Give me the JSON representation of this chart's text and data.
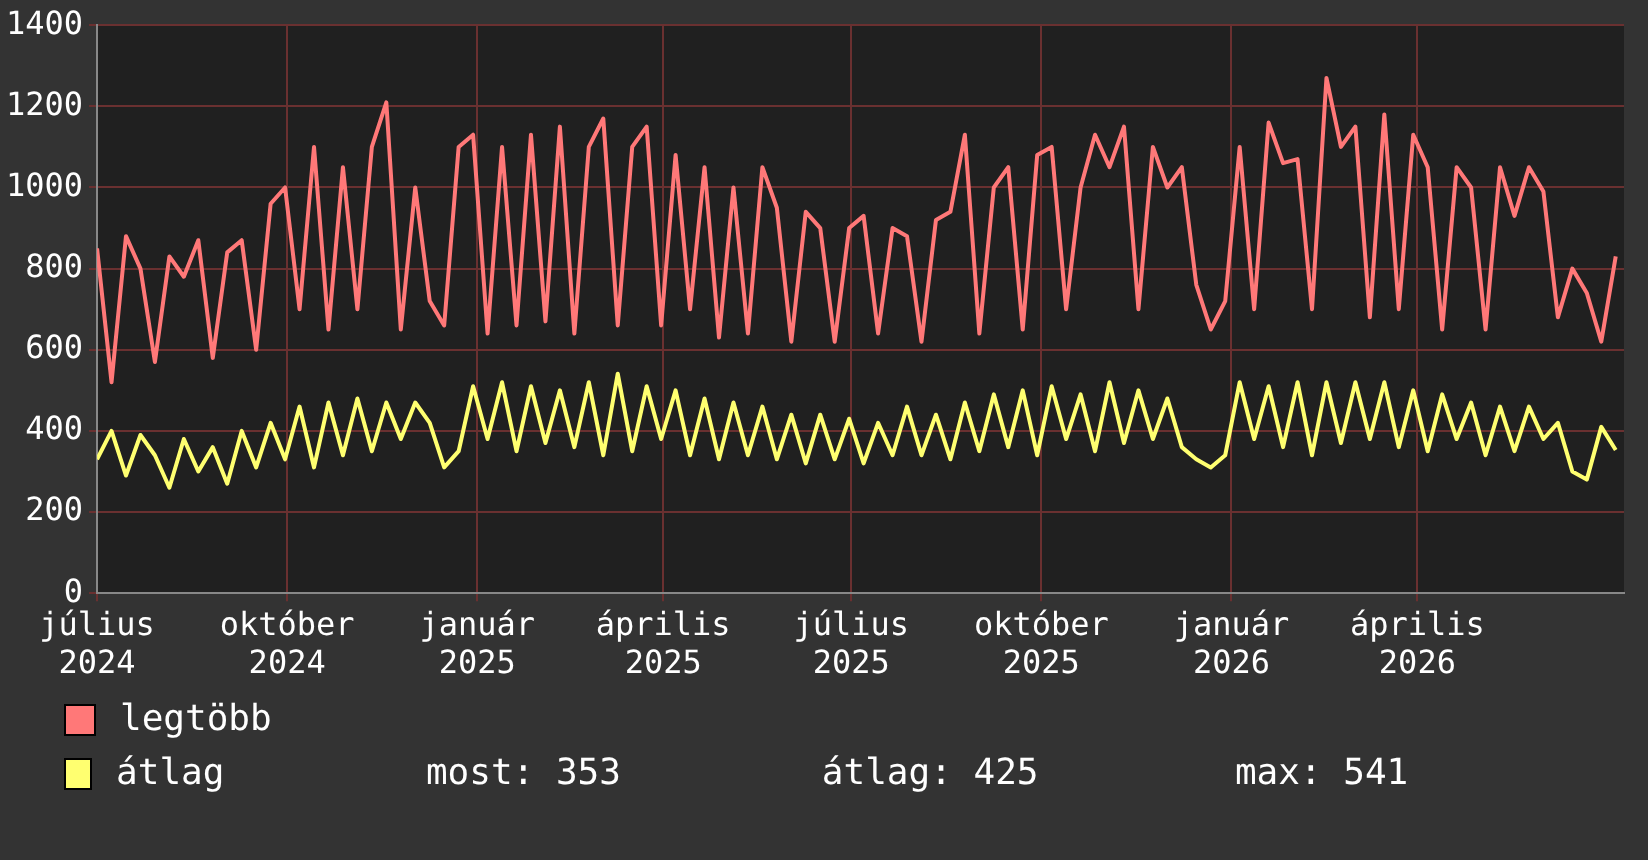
{
  "chart_data": {
    "type": "line",
    "x": [
      "2024-07-01",
      "2024-07-08",
      "2024-07-15",
      "2024-07-22",
      "2024-07-29",
      "2024-08-05",
      "2024-08-12",
      "2024-08-19",
      "2024-08-26",
      "2024-09-02",
      "2024-09-09",
      "2024-09-16",
      "2024-09-23",
      "2024-09-30",
      "2024-10-07",
      "2024-10-14",
      "2024-10-21",
      "2024-10-28",
      "2024-11-04",
      "2024-11-11",
      "2024-11-18",
      "2024-11-25",
      "2024-12-02",
      "2024-12-09",
      "2024-12-16",
      "2024-12-23",
      "2024-12-30",
      "2025-01-06",
      "2025-01-13",
      "2025-01-20",
      "2025-01-27",
      "2025-02-03",
      "2025-02-10",
      "2025-02-17",
      "2025-02-24",
      "2025-03-03",
      "2025-03-10",
      "2025-03-17",
      "2025-03-24",
      "2025-03-31",
      "2025-04-07",
      "2025-04-14",
      "2025-04-21",
      "2025-04-28",
      "2025-05-05",
      "2025-05-12",
      "2025-05-19",
      "2025-05-26",
      "2025-06-02",
      "2025-06-09",
      "2025-06-16",
      "2025-06-23",
      "2025-06-30",
      "2025-07-07",
      "2025-07-14",
      "2025-07-21",
      "2025-07-28",
      "2025-08-04",
      "2025-08-11",
      "2025-08-18",
      "2025-08-25",
      "2025-09-01",
      "2025-09-08",
      "2025-09-15",
      "2025-09-22",
      "2025-09-29",
      "2025-10-06",
      "2025-10-13",
      "2025-10-20",
      "2025-10-27",
      "2025-11-03",
      "2025-11-10",
      "2025-11-17",
      "2025-11-24",
      "2025-12-01",
      "2025-12-08",
      "2025-12-15",
      "2025-12-22",
      "2025-12-29",
      "2026-01-05",
      "2026-01-12",
      "2026-01-19",
      "2026-01-26",
      "2026-02-02",
      "2026-02-09",
      "2026-02-16",
      "2026-02-23",
      "2026-03-02",
      "2026-03-09",
      "2026-03-16",
      "2026-03-23",
      "2026-03-30",
      "2026-04-06",
      "2026-04-13",
      "2026-04-20",
      "2026-04-27",
      "2026-05-04",
      "2026-05-11",
      "2026-05-18",
      "2026-05-25",
      "2026-06-01",
      "2026-06-08",
      "2026-06-15",
      "2026-06-22",
      "2026-06-29",
      "2026-07-06"
    ],
    "series": [
      {
        "name": "legtöbb",
        "color": "#ff7878",
        "values": [
          850,
          520,
          880,
          800,
          570,
          830,
          780,
          870,
          580,
          840,
          870,
          600,
          960,
          1000,
          700,
          1100,
          650,
          1050,
          700,
          1100,
          1210,
          650,
          1000,
          720,
          660,
          1100,
          1130,
          640,
          1100,
          660,
          1130,
          670,
          1150,
          640,
          1100,
          1170,
          660,
          1100,
          1150,
          660,
          1080,
          700,
          1050,
          630,
          1000,
          640,
          1050,
          950,
          620,
          940,
          900,
          620,
          900,
          930,
          640,
          900,
          880,
          620,
          920,
          940,
          1130,
          640,
          1000,
          1050,
          650,
          1080,
          1100,
          700,
          1000,
          1130,
          1050,
          1150,
          700,
          1100,
          1000,
          1050,
          760,
          650,
          720,
          1100,
          700,
          1160,
          1060,
          1070,
          700,
          1270,
          1100,
          1150,
          680,
          1180,
          700,
          1130,
          1050,
          650,
          1050,
          1000,
          650,
          1050,
          930,
          1050,
          990,
          680,
          800,
          740,
          620,
          830
        ]
      },
      {
        "name": "átlag",
        "color": "#ffff70",
        "values": [
          330,
          400,
          290,
          390,
          340,
          260,
          380,
          300,
          360,
          270,
          400,
          310,
          420,
          330,
          460,
          310,
          470,
          340,
          480,
          350,
          470,
          380,
          470,
          420,
          310,
          350,
          510,
          380,
          520,
          350,
          510,
          370,
          500,
          360,
          520,
          340,
          541,
          350,
          510,
          380,
          500,
          340,
          480,
          330,
          470,
          340,
          460,
          330,
          440,
          320,
          440,
          330,
          430,
          320,
          420,
          340,
          460,
          340,
          440,
          330,
          470,
          350,
          490,
          360,
          500,
          340,
          510,
          380,
          490,
          350,
          520,
          370,
          500,
          380,
          480,
          360,
          330,
          310,
          340,
          520,
          380,
          510,
          360,
          520,
          340,
          520,
          370,
          520,
          380,
          520,
          360,
          500,
          350,
          490,
          380,
          470,
          340,
          460,
          350,
          460,
          380,
          420,
          300,
          280,
          410,
          353
        ]
      }
    ],
    "xlim": [
      "2024-07-01",
      "2026-07-10"
    ],
    "xticks": [
      {
        "value": "2024-07-01",
        "label": "július 2024"
      },
      {
        "value": "2024-10-01",
        "label": "október 2024"
      },
      {
        "value": "2025-01-01",
        "label": "január 2025"
      },
      {
        "value": "2025-04-01",
        "label": "április 2025"
      },
      {
        "value": "2025-07-01",
        "label": "július 2025"
      },
      {
        "value": "2025-10-01",
        "label": "október 2025"
      },
      {
        "value": "2026-01-01",
        "label": "január 2026"
      },
      {
        "value": "2026-04-01",
        "label": "április 2026"
      }
    ],
    "ylim": [
      0,
      1400
    ],
    "yticks": [
      0,
      200,
      400,
      600,
      800,
      1000,
      1200,
      1400
    ],
    "grid": true,
    "legend": "bottom",
    "annotations": [
      "most: 353",
      "átlag: 425",
      "max: 541"
    ]
  }
}
